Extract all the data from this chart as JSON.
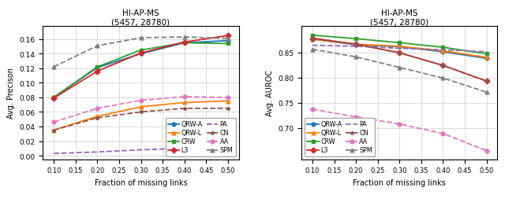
{
  "title": "HI-AP-MS\n(5457, 28780)",
  "x": [
    0.1,
    0.2,
    0.3,
    0.4,
    0.5
  ],
  "left_ylabel": "Avg. Precison",
  "left_ylim": [
    -0.005,
    0.178
  ],
  "left_yticks": [
    0.0,
    0.02,
    0.04,
    0.06,
    0.08,
    0.1,
    0.12,
    0.14,
    0.16
  ],
  "right_ylabel": "Avg. AUROC",
  "right_ylim": [
    0.638,
    0.902
  ],
  "right_yticks": [
    0.7,
    0.75,
    0.8,
    0.85
  ],
  "xlabel": "Fraction of missing links",
  "xticks": [
    0.1,
    0.15,
    0.2,
    0.25,
    0.3,
    0.35,
    0.4,
    0.45,
    0.5
  ],
  "series_left": [
    {
      "name": "QRW-A",
      "color": "#1f77b4",
      "marker": "o",
      "linestyle": "-",
      "values": [
        0.08,
        0.121,
        0.14,
        0.155,
        0.158
      ]
    },
    {
      "name": "QRW-L",
      "color": "#ff7f0e",
      "marker": "^",
      "linestyle": "-",
      "values": [
        0.035,
        0.054,
        0.067,
        0.073,
        0.075
      ]
    },
    {
      "name": "CRW",
      "color": "#2ca02c",
      "marker": "s",
      "linestyle": "-",
      "values": [
        0.08,
        0.122,
        0.145,
        0.155,
        0.154
      ]
    },
    {
      "name": "L3",
      "color": "#d62728",
      "marker": "D",
      "linestyle": "-",
      "values": [
        0.079,
        0.116,
        0.141,
        0.156,
        0.165
      ]
    },
    {
      "name": "PA",
      "color": "#9467bd",
      "marker": null,
      "linestyle": "--",
      "values": [
        0.003,
        0.005,
        0.008,
        0.01,
        0.01
      ]
    },
    {
      "name": "CN",
      "color": "#8c564b",
      "marker": "*",
      "linestyle": "--",
      "values": [
        0.035,
        0.052,
        0.06,
        0.065,
        0.065
      ]
    },
    {
      "name": "AA",
      "color": "#e377c2",
      "marker": "o",
      "linestyle": "--",
      "values": [
        0.046,
        0.065,
        0.076,
        0.081,
        0.08
      ]
    },
    {
      "name": "SPM",
      "color": "#7f7f7f",
      "marker": "^",
      "linestyle": "--",
      "values": [
        0.122,
        0.151,
        0.162,
        0.163,
        0.161
      ]
    }
  ],
  "series_right": [
    {
      "name": "QRW-A",
      "color": "#1f77b4",
      "marker": "o",
      "linestyle": "-",
      "values": [
        0.876,
        0.865,
        0.861,
        0.851,
        0.838
      ]
    },
    {
      "name": "QRW-L",
      "color": "#ff7f0e",
      "marker": "^",
      "linestyle": "-",
      "values": [
        0.876,
        0.866,
        0.862,
        0.853,
        0.84
      ]
    },
    {
      "name": "CRW",
      "color": "#2ca02c",
      "marker": "s",
      "linestyle": "-",
      "values": [
        0.884,
        0.877,
        0.869,
        0.86,
        0.847
      ]
    },
    {
      "name": "L3",
      "color": "#d62728",
      "marker": "D",
      "linestyle": "-",
      "values": [
        0.878,
        0.866,
        0.849,
        0.824,
        0.793
      ]
    },
    {
      "name": "PA",
      "color": "#9467bd",
      "marker": null,
      "linestyle": "--",
      "values": [
        0.864,
        0.862,
        0.858,
        0.855,
        0.851
      ]
    },
    {
      "name": "CN",
      "color": "#8c564b",
      "marker": "*",
      "linestyle": "--",
      "values": [
        0.878,
        0.866,
        0.849,
        0.824,
        0.793
      ]
    },
    {
      "name": "AA",
      "color": "#e377c2",
      "marker": "o",
      "linestyle": "--",
      "values": [
        0.737,
        0.722,
        0.708,
        0.689,
        0.655
      ]
    },
    {
      "name": "SPM",
      "color": "#7f7f7f",
      "marker": "^",
      "linestyle": "--",
      "values": [
        0.856,
        0.841,
        0.82,
        0.799,
        0.771
      ]
    }
  ],
  "legend_col1": [
    "QRW-A",
    "QRW-L",
    "CRW",
    "L3"
  ],
  "legend_col2": [
    "PA",
    "CN",
    "AA",
    "SPM"
  ]
}
